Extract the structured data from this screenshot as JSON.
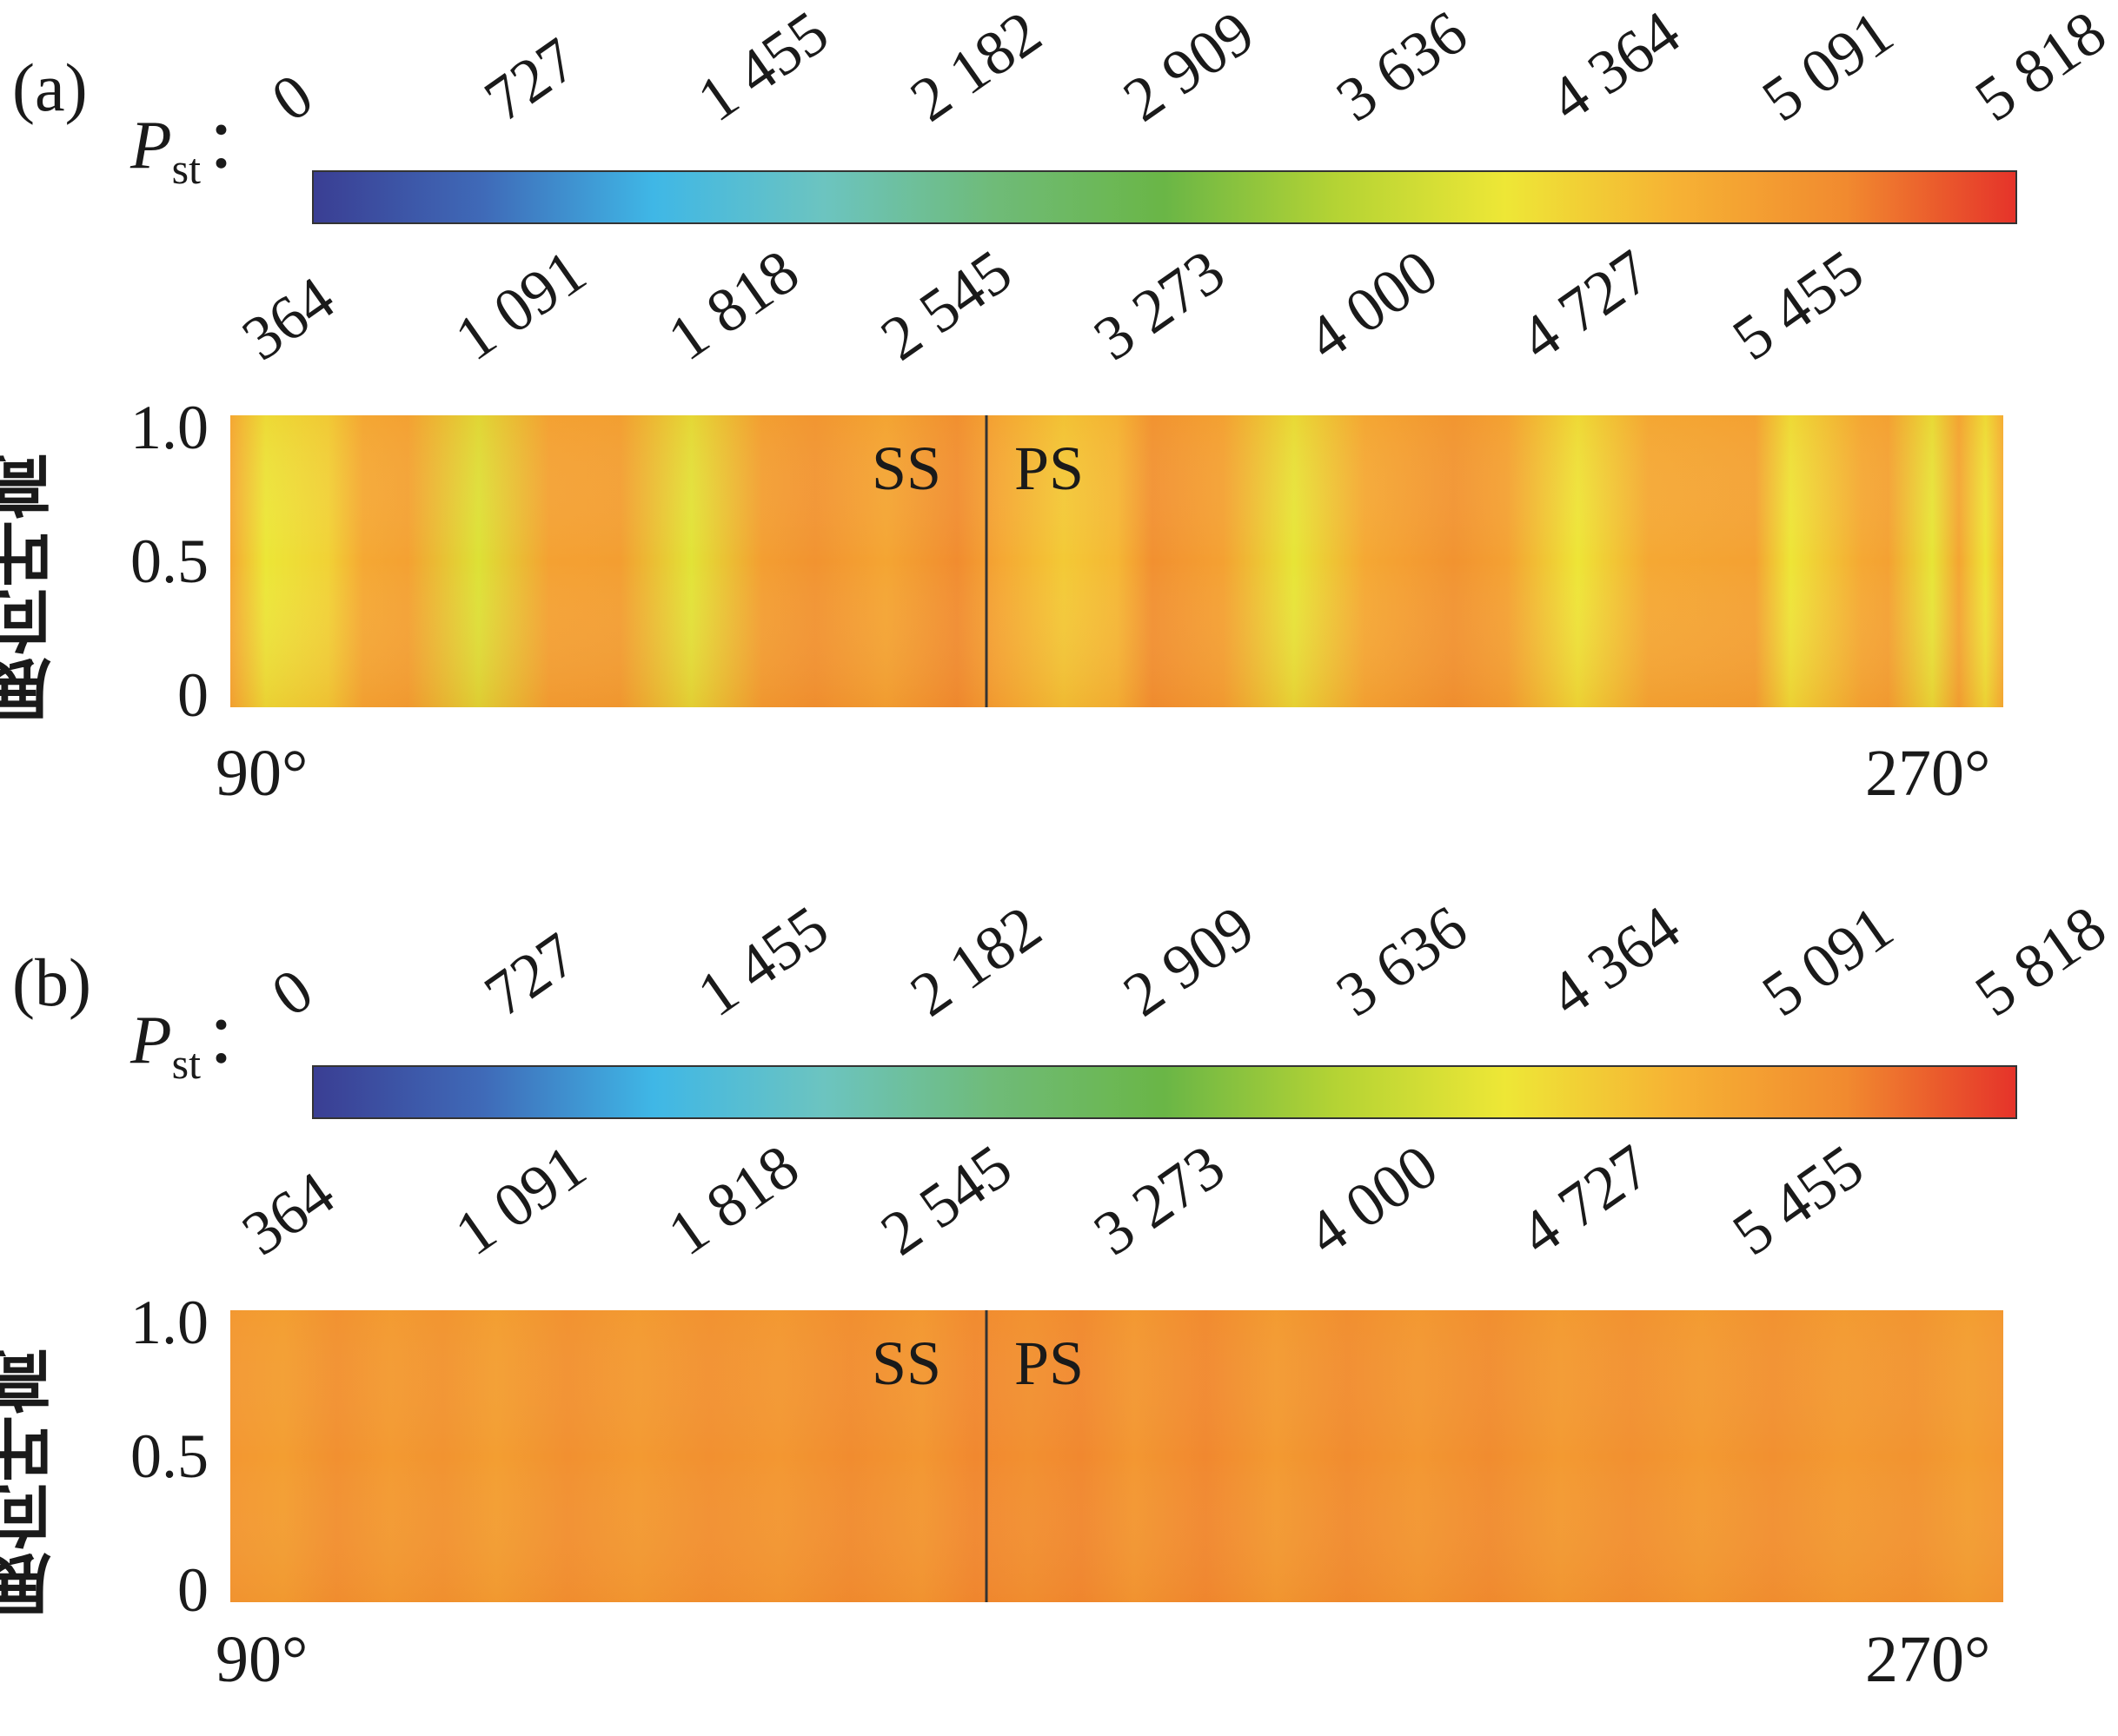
{
  "chart_data": [
    {
      "panel_label": "(a)",
      "type": "heatmap",
      "colorbar": {
        "variable": "P",
        "subscript": "st",
        "colon": "：",
        "ticks_top": [
          "0",
          "727",
          "1 455",
          "2 182",
          "2 909",
          "3 636",
          "4 364",
          "5 091",
          "5 818"
        ],
        "ticks_bottom": [
          "364",
          "1 091",
          "1 818",
          "2 545",
          "3 273",
          "4 000",
          "4 727",
          "5 455"
        ],
        "range": [
          0,
          5818
        ],
        "colormap": [
          "#3a3e93",
          "#3f6ab8",
          "#3fb7e6",
          "#6cc4c0",
          "#6fbb78",
          "#6ab646",
          "#b4d334",
          "#eee736",
          "#f6b234",
          "#f18a2f",
          "#e5332a"
        ]
      },
      "ylabel": "展向叶高",
      "yticks": [
        "1.0",
        "0.5",
        "0"
      ],
      "x_start": "90°",
      "x_end": "270°",
      "divider_labels": {
        "left": "SS",
        "right": "PS"
      },
      "field_description_stops": [
        [
          0.0,
          4800
        ],
        [
          0.02,
          4050
        ],
        [
          0.055,
          4300
        ],
        [
          0.075,
          4800
        ],
        [
          0.1,
          4900
        ],
        [
          0.14,
          3900
        ],
        [
          0.18,
          4900
        ],
        [
          0.22,
          4950
        ],
        [
          0.26,
          3950
        ],
        [
          0.3,
          4950
        ],
        [
          0.33,
          5100
        ],
        [
          0.37,
          4850
        ],
        [
          0.41,
          5200
        ],
        [
          0.435,
          4800
        ],
        [
          0.47,
          4400
        ],
        [
          0.5,
          4600
        ],
        [
          0.52,
          5150
        ],
        [
          0.56,
          4900
        ],
        [
          0.6,
          4000
        ],
        [
          0.64,
          4800
        ],
        [
          0.69,
          5100
        ],
        [
          0.72,
          4900
        ],
        [
          0.76,
          4100
        ],
        [
          0.8,
          4800
        ],
        [
          0.86,
          4900
        ],
        [
          0.88,
          4100
        ],
        [
          0.92,
          4800
        ],
        [
          0.935,
          4900
        ],
        [
          0.96,
          4000
        ],
        [
          0.975,
          4850
        ],
        [
          0.99,
          4100
        ],
        [
          1.0,
          4700
        ]
      ]
    },
    {
      "panel_label": "(b)",
      "type": "heatmap",
      "colorbar": {
        "variable": "P",
        "subscript": "st",
        "colon": "：",
        "ticks_top": [
          "0",
          "727",
          "1 455",
          "2 182",
          "2 909",
          "3 636",
          "4 364",
          "5 091",
          "5 818"
        ],
        "ticks_bottom": [
          "364",
          "1 091",
          "1 818",
          "2 545",
          "3 273",
          "4 000",
          "4 727",
          "5 455"
        ],
        "range": [
          0,
          5818
        ],
        "colormap": [
          "#3a3e93",
          "#3f6ab8",
          "#3fb7e6",
          "#6cc4c0",
          "#6fbb78",
          "#6ab646",
          "#b4d334",
          "#eee736",
          "#f6b234",
          "#f18a2f",
          "#e5332a"
        ]
      },
      "ylabel": "展向叶高",
      "yticks": [
        "1.0",
        "0.5",
        "0"
      ],
      "x_start": "90°",
      "x_end": "270°",
      "divider_labels": {
        "left": "SS",
        "right": "PS"
      },
      "field_description_stops": [
        [
          0.0,
          5050
        ],
        [
          0.03,
          4950
        ],
        [
          0.06,
          5150
        ],
        [
          0.09,
          5000
        ],
        [
          0.12,
          5100
        ],
        [
          0.15,
          4950
        ],
        [
          0.19,
          5150
        ],
        [
          0.23,
          5000
        ],
        [
          0.27,
          5150
        ],
        [
          0.31,
          5050
        ],
        [
          0.35,
          5200
        ],
        [
          0.39,
          5050
        ],
        [
          0.42,
          5250
        ],
        [
          0.45,
          5150
        ],
        [
          0.48,
          5250
        ],
        [
          0.51,
          5050
        ],
        [
          0.55,
          5250
        ],
        [
          0.59,
          5000
        ],
        [
          0.63,
          5200
        ],
        [
          0.67,
          5050
        ],
        [
          0.71,
          5200
        ],
        [
          0.75,
          5000
        ],
        [
          0.79,
          5150
        ],
        [
          0.83,
          5000
        ],
        [
          0.87,
          5150
        ],
        [
          0.91,
          5000
        ],
        [
          0.95,
          5100
        ],
        [
          0.98,
          4950
        ],
        [
          1.0,
          5050
        ]
      ]
    }
  ]
}
